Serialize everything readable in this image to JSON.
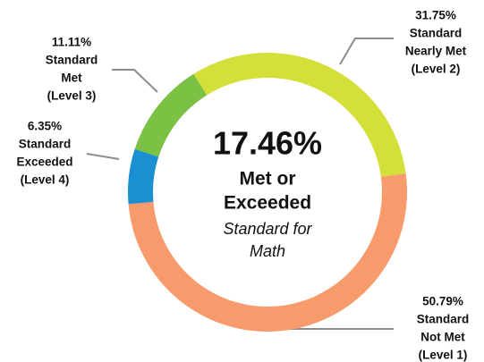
{
  "chart_data": {
    "type": "donut",
    "categories": [
      [
        "Standard",
        "Nearly Met",
        "(Level 2)"
      ],
      [
        "Standard",
        "Not Met",
        "(Level 1)"
      ],
      [
        "Standard",
        "Exceeded",
        "(Level 4)"
      ],
      [
        "Standard",
        "Met",
        "(Level 3)"
      ]
    ],
    "values": [
      31.75,
      50.79,
      6.35,
      11.11
    ],
    "value_labels": [
      "31.75%",
      "50.79%",
      "6.35%",
      "11.11%"
    ],
    "colors": [
      "#d4df3a",
      "#f79b6c",
      "#1a8fd1",
      "#7bc143"
    ],
    "center_text": {
      "headline": "17.46%",
      "bold_lines": [
        "Met or",
        "Exceeded"
      ],
      "italic_lines": [
        "Standard for",
        "Math"
      ]
    }
  }
}
